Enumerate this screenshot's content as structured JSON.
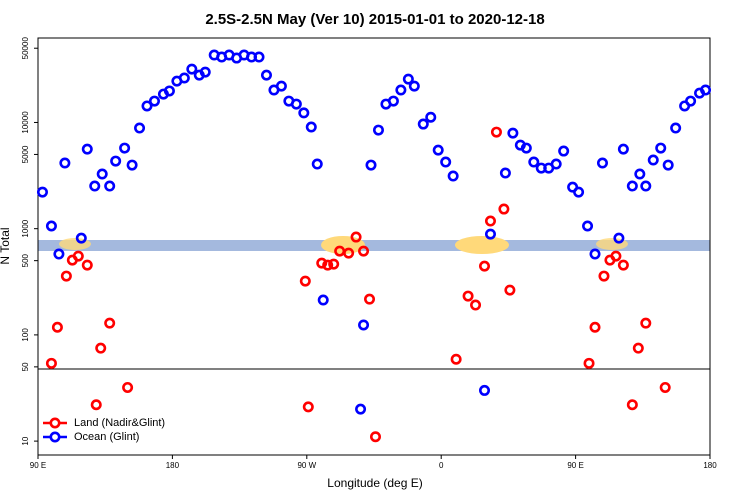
{
  "chart_data": {
    "type": "scatter",
    "title": "2.5S-2.5N May (Ver 10)   2015-01-01 to 2020-12-18",
    "x_label": "Longitude (deg E)",
    "y_label": "N Total",
    "xlim": [
      90,
      540
    ],
    "xticks": [
      {
        "value": 90,
        "label": "90 E"
      },
      180,
      {
        "value": 270,
        "label": "90 W"
      },
      {
        "value": 360,
        "label": "0"
      },
      {
        "value": 450,
        "label": "90 E"
      },
      {
        "value": 540,
        "label": "180"
      }
    ],
    "ylim": [
      7.4,
      62400
    ],
    "yticks": [
      10,
      50,
      100,
      500,
      1000,
      5000,
      10000,
      50000
    ],
    "log_y": true,
    "legend": "bottom-left",
    "series": [
      {
        "name": "Land (Nadir&Glint)",
        "color": "#ff0000",
        "x": [
          99,
          103,
          109,
          113,
          117,
          123,
          132,
          138,
          150,
          129,
          269,
          271,
          280,
          284,
          288,
          292,
          298,
          303,
          308,
          312,
          316,
          370,
          378,
          383,
          389,
          393,
          402,
          406,
          397,
          459,
          463,
          469,
          473,
          477,
          482,
          492,
          497,
          510,
          488
        ],
        "values": [
          54,
          118,
          358,
          506,
          552,
          454,
          75,
          129,
          32,
          22,
          321,
          21,
          474,
          454,
          464,
          615,
          589,
          834,
          615,
          217,
          11,
          59,
          232,
          191,
          444,
          1180,
          1530,
          264,
          8120,
          54,
          118,
          358,
          506,
          552,
          454,
          75,
          129,
          32,
          22
        ]
      },
      {
        "name": "Ocean (Glint)",
        "color": "#0000ff",
        "x": [
          93,
          99,
          104,
          108,
          119,
          123,
          128,
          133,
          138,
          142,
          148,
          153,
          158,
          163,
          168,
          174,
          178,
          183,
          188,
          193,
          198,
          202,
          208,
          213,
          218,
          223,
          228,
          233,
          238,
          243,
          248,
          253,
          258,
          263,
          268,
          273,
          277,
          281,
          308,
          313,
          318,
          323,
          328,
          333,
          338,
          342,
          348,
          353,
          358,
          363,
          368,
          393,
          403,
          408,
          413,
          417,
          422,
          427,
          432,
          437,
          442,
          448,
          452,
          458,
          463,
          468,
          479,
          482,
          488,
          493,
          497,
          502,
          507,
          512,
          517,
          523,
          527,
          533,
          537,
          306,
          389
        ],
        "values": [
          2210,
          1060,
          577,
          4150,
          815,
          5610,
          2520,
          3270,
          2520,
          4330,
          5740,
          3970,
          8860,
          14300,
          15900,
          18500,
          19800,
          24500,
          26200,
          31800,
          27900,
          29800,
          43150,
          41300,
          43150,
          40400,
          43150,
          41300,
          41300,
          27900,
          20200,
          22000,
          15900,
          14900,
          12300,
          9060,
          4060,
          213,
          124,
          3970,
          8480,
          14900,
          15900,
          20200,
          25600,
          22000,
          9660,
          11200,
          5490,
          4240,
          3130,
          889,
          3340,
          7940,
          6120,
          5740,
          4240,
          3720,
          3720,
          4060,
          5380,
          2460,
          2210,
          1060,
          577,
          4150,
          815,
          5610,
          2520,
          3270,
          2520,
          4430,
          5740,
          3970,
          8860,
          14300,
          15900,
          18900,
          20200,
          20,
          30
        ]
      }
    ]
  }
}
